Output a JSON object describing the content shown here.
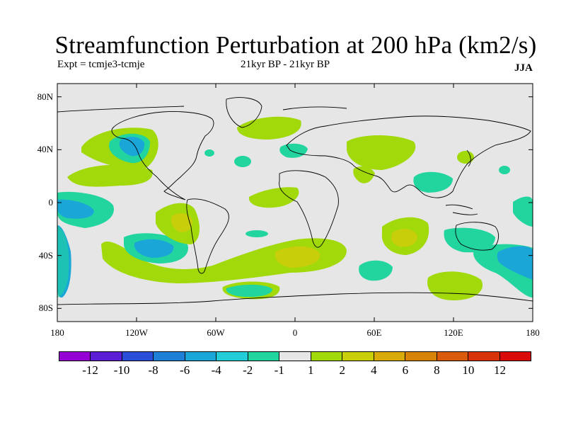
{
  "title": "Streamfunction Perturbation at 200 hPa (km2/s)",
  "subtitle_left": "Expt = tcmje3-tcmje",
  "subtitle_mid": "21kyr BP - 21kyr BP",
  "season": "JJA",
  "map": {
    "projection": "equirectangular",
    "lon_range": [
      -180,
      180
    ],
    "lat_range": [
      -90,
      90
    ],
    "background": "#e6e6e6",
    "y_tick_labels": [
      "80N",
      "40N",
      "0",
      "40S",
      "80S"
    ],
    "x_tick_labels": [
      "180",
      "120W",
      "60W",
      "0",
      "60E",
      "120E",
      "180"
    ]
  },
  "colorbar": {
    "colors": [
      "#9400d3",
      "#5a1ed6",
      "#2b4ed8",
      "#1f7ed6",
      "#1ba6d8",
      "#22cdd7",
      "#22d59e",
      "#e6e6e6",
      "#a1d90a",
      "#c8cf0a",
      "#d8aa0a",
      "#d8840a",
      "#d85a0a",
      "#d8320a",
      "#d80a0a"
    ],
    "labels": [
      "-12",
      "-10",
      "-8",
      "-6",
      "-4",
      "-2",
      "-1",
      "1",
      "2",
      "4",
      "6",
      "8",
      "10",
      "12"
    ]
  }
}
